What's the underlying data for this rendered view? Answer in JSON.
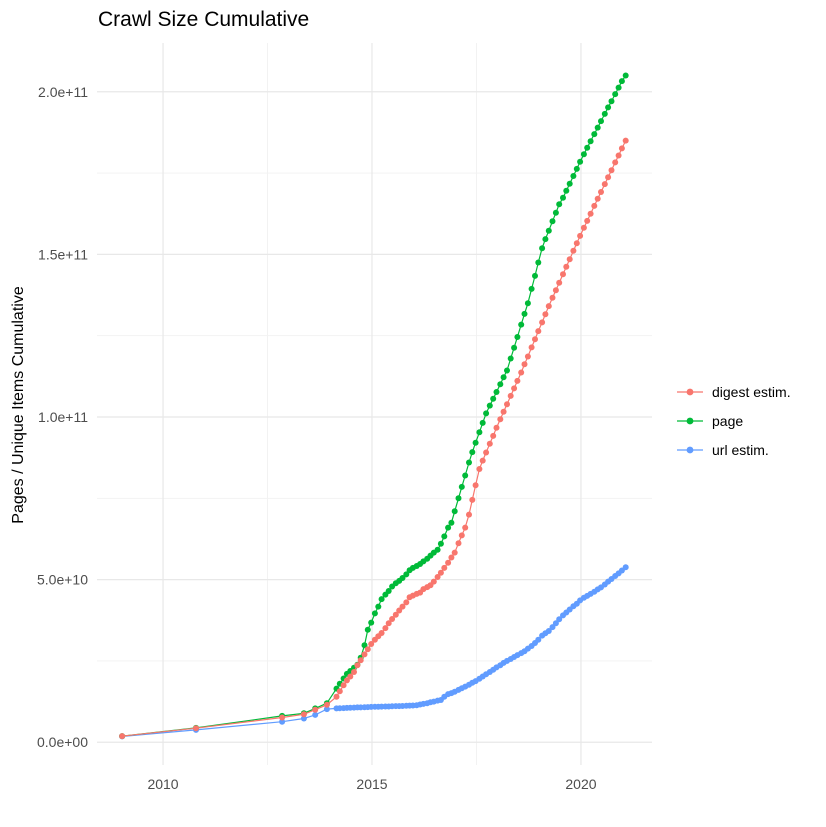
{
  "title": "Crawl Size Cumulative",
  "y_axis": {
    "label": "Pages / Unique Items Cumulative",
    "unit": "1e9",
    "ticks": [
      {
        "value": 0,
        "label": "0.0e+00"
      },
      {
        "value": 50,
        "label": "5.0e+10"
      },
      {
        "value": 100,
        "label": "1.0e+11"
      },
      {
        "value": 150,
        "label": "1.5e+11"
      },
      {
        "value": 200,
        "label": "2.0e+11"
      }
    ],
    "minor_ticks": [
      25,
      75,
      125,
      175
    ]
  },
  "x_axis": {
    "ticks": [
      {
        "value": 2010,
        "label": "2010"
      },
      {
        "value": 2015,
        "label": "2015"
      },
      {
        "value": 2020,
        "label": "2020"
      }
    ],
    "minor_ticks": [
      2012.5,
      2017.5
    ]
  },
  "legend": {
    "items": [
      {
        "label": "digest estim.",
        "color": "#F8766D"
      },
      {
        "label": "page",
        "color": "#00BA38"
      },
      {
        "label": "url estim.",
        "color": "#619CFF"
      }
    ]
  },
  "colors": {
    "digest": "#F8766D",
    "page": "#00BA38",
    "url": "#619CFF",
    "grid_major": "#E8E8E8",
    "grid_minor": "#F1F1F1",
    "tick_text": "#4d4d4d"
  },
  "chart_data": {
    "type": "scatter",
    "title": "Crawl Size Cumulative",
    "xlabel": "",
    "ylabel": "Pages / Unique Items Cumulative",
    "value_unit": "1e9 (billions of pages / items, cumulative)",
    "grid": true,
    "legend_position": "right",
    "x_range": [
      2008.42,
      2021.7
    ],
    "y_range_e9": [
      -7,
      215
    ],
    "x_pre": [
      2009.02,
      2010.79,
      2012.85,
      2013.37,
      2013.64,
      2013.92
    ],
    "x_monthly": [
      2014.15,
      2014.23,
      2014.32,
      2014.4,
      2014.48,
      2014.57,
      2014.65,
      2014.73,
      2014.82,
      2014.9,
      2014.98,
      2015.07,
      2015.15,
      2015.23,
      2015.32,
      2015.4,
      2015.48,
      2015.57,
      2015.65,
      2015.73,
      2015.82,
      2015.9,
      2015.98,
      2016.07,
      2016.15,
      2016.23,
      2016.32,
      2016.4,
      2016.48,
      2016.57,
      2016.65,
      2016.73,
      2016.82,
      2016.9,
      2016.98,
      2017.07,
      2017.15,
      2017.23,
      2017.32,
      2017.4,
      2017.48,
      2017.57,
      2017.65,
      2017.73,
      2017.82,
      2017.9,
      2017.98,
      2018.07,
      2018.15,
      2018.23,
      2018.32,
      2018.4,
      2018.48,
      2018.57,
      2018.65,
      2018.73,
      2018.82,
      2018.9,
      2018.98,
      2019.07,
      2019.15,
      2019.23,
      2019.32,
      2019.4,
      2019.48,
      2019.57,
      2019.65,
      2019.73,
      2019.82,
      2019.9,
      2019.98,
      2020.07,
      2020.15,
      2020.23,
      2020.32,
      2020.4,
      2020.48,
      2020.57,
      2020.65,
      2020.73,
      2020.82,
      2020.9,
      2020.98,
      2021.07
    ],
    "series": [
      {
        "name": "url estim.",
        "color": "#619CFF",
        "values_pre": [
          1.8,
          3.8,
          6.3,
          7.3,
          8.4,
          10.2
        ],
        "values_monthly": [
          10.4,
          10.45,
          10.5,
          10.55,
          10.6,
          10.65,
          10.7,
          10.72,
          10.75,
          10.8,
          10.85,
          10.9,
          10.92,
          10.95,
          11.0,
          11.0,
          11.05,
          11.1,
          11.1,
          11.15,
          11.2,
          11.25,
          11.3,
          11.4,
          11.6,
          11.8,
          12.0,
          12.3,
          12.5,
          12.8,
          13.0,
          14.0,
          14.8,
          15.1,
          15.5,
          16.1,
          16.6,
          17.1,
          17.7,
          18.3,
          18.8,
          19.5,
          20.2,
          20.9,
          21.6,
          22.3,
          23.0,
          23.7,
          24.4,
          25.0,
          25.6,
          26.2,
          26.8,
          27.4,
          28.0,
          28.8,
          29.6,
          30.5,
          31.5,
          32.8,
          33.5,
          34.2,
          35.4,
          36.6,
          37.8,
          39.0,
          39.9,
          40.8,
          41.8,
          42.6,
          43.6,
          44.4,
          45.0,
          45.6,
          46.3,
          47.0,
          47.6,
          48.5,
          49.4,
          50.2,
          51.1,
          51.9,
          52.8,
          53.8
        ]
      },
      {
        "name": "page",
        "color": "#00BA38",
        "values_pre": [
          1.9,
          4.4,
          8.1,
          8.9,
          10.4,
          12.0
        ],
        "values_monthly": [
          16.5,
          18.0,
          19.6,
          21.0,
          21.9,
          22.9,
          23.8,
          26.0,
          29.8,
          34.6,
          36.8,
          39.6,
          41.7,
          44.0,
          45.4,
          46.5,
          47.9,
          48.9,
          49.6,
          50.5,
          51.6,
          52.9,
          53.6,
          54.2,
          54.8,
          55.6,
          56.4,
          57.4,
          58.3,
          59.2,
          61.0,
          63.3,
          66.0,
          67.5,
          71.0,
          75.0,
          78.5,
          82.0,
          86.0,
          89.2,
          92.1,
          95.3,
          98.2,
          101.1,
          103.5,
          105.6,
          107.7,
          110.1,
          112.2,
          114.3,
          118.0,
          121.3,
          124.6,
          128.4,
          131.7,
          135.0,
          139.4,
          143.4,
          147.5,
          151.9,
          154.7,
          157.3,
          160.2,
          162.8,
          165.4,
          167.4,
          169.6,
          171.7,
          174.1,
          176.3,
          178.5,
          180.8,
          182.8,
          184.8,
          187.0,
          189.0,
          191.0,
          193.2,
          195.2,
          197.1,
          199.3,
          201.3,
          203.3,
          205.0
        ]
      },
      {
        "name": "digest estim.",
        "color": "#F8766D",
        "values_pre": [
          1.9,
          4.3,
          7.6,
          8.6,
          10.0,
          11.5
        ],
        "values_monthly": [
          14.0,
          15.7,
          17.5,
          19.0,
          20.2,
          21.6,
          23.7,
          25.2,
          27.0,
          28.6,
          30.2,
          31.5,
          32.6,
          33.6,
          35.1,
          36.6,
          37.9,
          39.2,
          40.5,
          41.7,
          43.0,
          44.6,
          45.1,
          45.6,
          46.0,
          47.1,
          47.7,
          48.3,
          49.4,
          50.8,
          52.1,
          53.6,
          55.2,
          56.8,
          58.3,
          61.2,
          63.6,
          66.0,
          70.0,
          74.5,
          79.0,
          84.0,
          86.6,
          89.1,
          91.8,
          94.2,
          96.7,
          99.3,
          101.6,
          103.9,
          106.5,
          108.8,
          111.1,
          113.7,
          116.2,
          118.6,
          121.4,
          123.9,
          126.4,
          129.1,
          131.6,
          134.1,
          136.7,
          139.0,
          141.3,
          143.9,
          146.2,
          148.5,
          151.1,
          153.4,
          155.7,
          158.2,
          160.3,
          162.5,
          164.9,
          167.1,
          169.2,
          171.6,
          173.7,
          175.9,
          178.3,
          180.4,
          182.6,
          185.0
        ]
      }
    ]
  }
}
